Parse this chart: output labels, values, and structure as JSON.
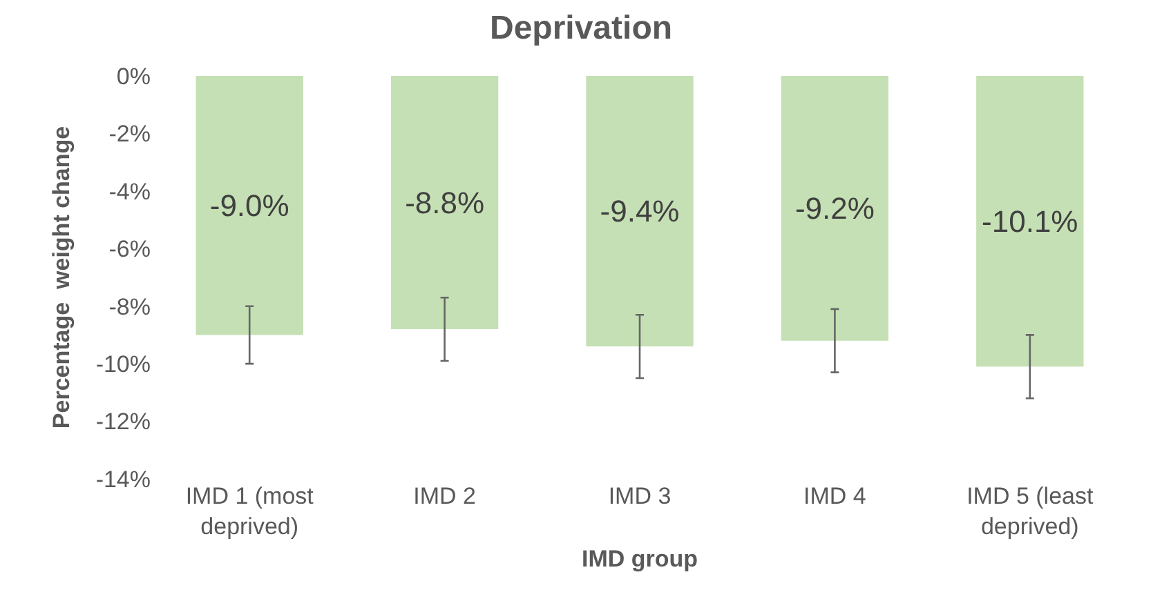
{
  "chart_data": {
    "type": "bar",
    "title": "Deprivation",
    "xlabel": "IMD group",
    "ylabel": "Percentage  weight change",
    "categories": [
      "IMD 1 (most deprived)",
      "IMD 2",
      "IMD 3",
      "IMD 4",
      "IMD 5 (least deprived)"
    ],
    "values": [
      -9.0,
      -8.8,
      -9.4,
      -9.2,
      -10.1
    ],
    "color": "#c5e0b4",
    "errors": [
      1.0,
      1.1,
      1.1,
      1.1,
      1.1
    ],
    "value_labels": [
      "-9.0%",
      "-8.8%",
      "-9.4%",
      "-9.2%",
      "-10.1%"
    ],
    "ylim": [
      -14,
      0
    ],
    "yticks": [
      {
        "value": 0,
        "label": "0%"
      },
      {
        "value": -2,
        "label": "-2%"
      },
      {
        "value": -4,
        "label": "-4%"
      },
      {
        "value": -6,
        "label": "-6%"
      },
      {
        "value": -8,
        "label": "-8%"
      },
      {
        "value": -10,
        "label": "-10%"
      },
      {
        "value": -12,
        "label": "-12%"
      },
      {
        "value": -14,
        "label": "-14%"
      }
    ],
    "grid": false
  }
}
